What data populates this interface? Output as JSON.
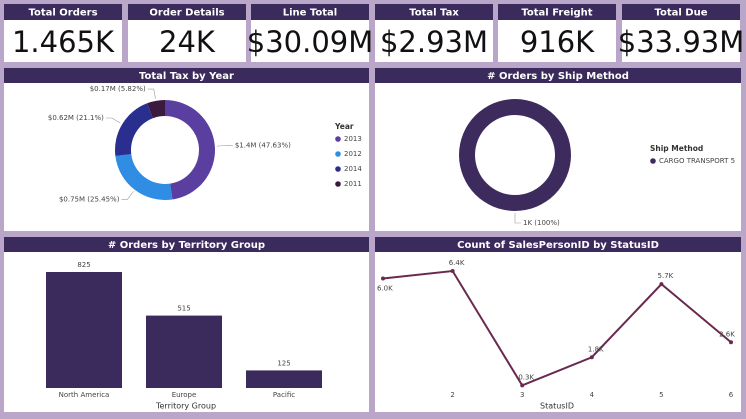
{
  "cards": [
    {
      "title": "Total Orders",
      "value": "1.465K"
    },
    {
      "title": "Order Details",
      "value": "24K"
    },
    {
      "title": "Line Total",
      "value": "$30.09M"
    },
    {
      "title": "Total Tax",
      "value": "$2.93M"
    },
    {
      "title": "Total Freight",
      "value": "916K"
    },
    {
      "title": "Total Due",
      "value": "$33.93M"
    }
  ],
  "chart_data": [
    {
      "type": "donut",
      "title": "Total Tax by Year",
      "legend_title": "Year",
      "categories": [
        "2013",
        "2012",
        "2014",
        "2011"
      ],
      "values": [
        47.63,
        25.45,
        21.1,
        5.82
      ],
      "value_labels": [
        "$1.4M (47.63%)",
        "$0.75M (25.45%)",
        "$0.62M (21.1%)",
        "$0.17M (5.82%)"
      ],
      "colors": [
        "#5b3fa0",
        "#2f8de4",
        "#2a2f8f",
        "#3a1a3f"
      ]
    },
    {
      "type": "donut",
      "title": "# Orders by Ship Method",
      "legend_title": "Ship Method",
      "categories": [
        "CARGO TRANSPORT 5"
      ],
      "values": [
        100
      ],
      "value_labels": [
        "1K (100%)"
      ],
      "colors": [
        "#3d2b5e"
      ]
    },
    {
      "type": "bar",
      "title": "# Orders by Territory Group",
      "x_label": "Territory Group",
      "categories": [
        "North America",
        "Europe",
        "Pacific"
      ],
      "values": [
        825,
        515,
        125
      ],
      "color": "#3b2a5c"
    },
    {
      "type": "line",
      "title": "Count of SalesPersonID by StatusID",
      "x_label": "StatusID",
      "x": [
        1,
        2,
        3,
        4,
        5,
        6
      ],
      "xlim": [
        1,
        6
      ],
      "xticks": [
        2,
        3,
        4,
        5,
        6
      ],
      "values": [
        6.0,
        6.4,
        0.3,
        1.8,
        5.7,
        2.6
      ],
      "value_labels": [
        "6.0K",
        "6.4K",
        "0.3K",
        "1.8K",
        "5.7K",
        "2.6K"
      ],
      "color": "#6a2a50"
    }
  ]
}
